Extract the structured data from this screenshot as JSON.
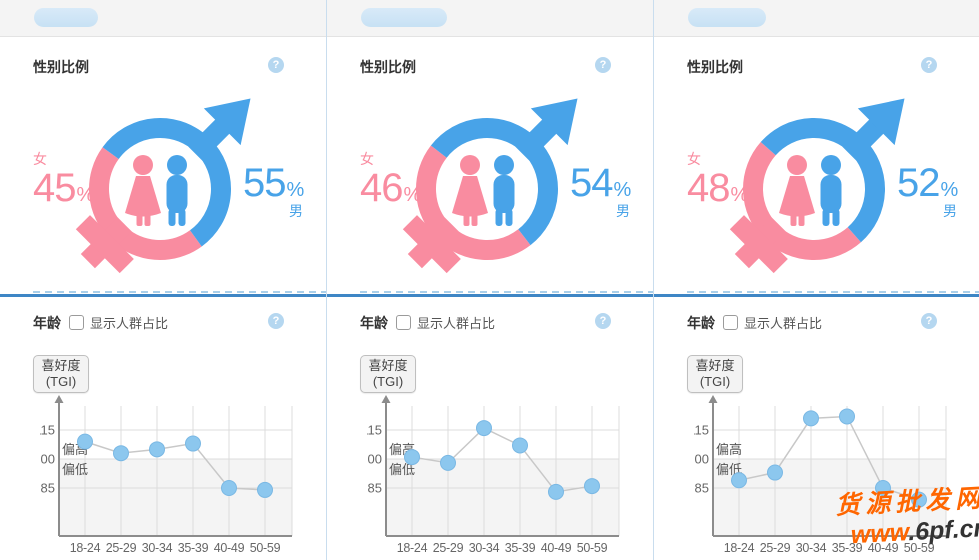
{
  "colors": {
    "male_blue": "#48A3E8",
    "female_pink": "#F98CA0",
    "point_fill": "#8CC7EE",
    "point_stroke": "#7AB8E4",
    "line_gray": "#C8C8C8",
    "grid_gray": "#DCDCDC",
    "axis_gray": "#8C8C8C",
    "shade_gray": "#F4F4F4",
    "tick_text": "#666666",
    "divider_solid": "#3E86C5",
    "divider_dash": "#AACFE9",
    "watermark_orange": "#FF6600",
    "watermark_dark": "#333333"
  },
  "shared": {
    "help_icon": "?",
    "age_axis": {
      "ylabel_line1": "喜好度",
      "ylabel_line2": "(TGI)",
      "high_label": "偏高",
      "low_label": "偏低",
      "yticks": [
        115,
        100,
        85
      ],
      "categories": [
        "18-24",
        "25-29",
        "30-34",
        "35-39",
        "40-49",
        "50-59"
      ]
    }
  },
  "watermark": {
    "line1": "货源批发网",
    "line2_orange": "www",
    "line2_dark": ".6pf.cn"
  },
  "columns": [
    {
      "pill_width": 64,
      "gender": {
        "title": "性别比例",
        "female_label": "女",
        "male_label": "男",
        "female_value": "45",
        "male_value": "55",
        "percent": "%",
        "female_pct": 45
      },
      "age": {
        "title": "年龄",
        "checkbox_label": "显示人群占比",
        "values": [
          109,
          103,
          105,
          108,
          85,
          84
        ]
      }
    },
    {
      "pill_width": 86,
      "gender": {
        "title": "性别比例",
        "female_label": "女",
        "male_label": "男",
        "female_value": "46",
        "male_value": "54",
        "percent": "%",
        "female_pct": 46
      },
      "age": {
        "title": "年龄",
        "checkbox_label": "显示人群占比",
        "values": [
          101,
          98,
          116,
          107,
          83,
          86
        ]
      }
    },
    {
      "pill_width": 78,
      "gender": {
        "title": "性别比例",
        "female_label": "女",
        "male_label": "男",
        "female_value": "48",
        "male_value": "52",
        "percent": "%",
        "female_pct": 48
      },
      "age": {
        "title": "年龄",
        "checkbox_label": "显示人群占比",
        "values": [
          89,
          93,
          121,
          122,
          85,
          79
        ]
      }
    }
  ],
  "chart_data": [
    {
      "type": "pie",
      "title": "性别比例 panel 1",
      "labels": [
        "女",
        "男"
      ],
      "values": [
        45,
        55
      ]
    },
    {
      "type": "pie",
      "title": "性别比例 panel 2",
      "labels": [
        "女",
        "男"
      ],
      "values": [
        46,
        54
      ]
    },
    {
      "type": "pie",
      "title": "性别比例 panel 3",
      "labels": [
        "女",
        "男"
      ],
      "values": [
        48,
        52
      ]
    },
    {
      "type": "line",
      "title": "年龄 喜好度(TGI) panel 1",
      "ylabel": "喜好度(TGI)",
      "categories": [
        "18-24",
        "25-29",
        "30-34",
        "35-39",
        "40-49",
        "50-59"
      ],
      "values": [
        109,
        103,
        105,
        108,
        85,
        84
      ],
      "yticks": [
        115,
        100,
        85
      ],
      "annotations": [
        "偏高",
        "偏低"
      ]
    },
    {
      "type": "line",
      "title": "年龄 喜好度(TGI) panel 2",
      "ylabel": "喜好度(TGI)",
      "categories": [
        "18-24",
        "25-29",
        "30-34",
        "35-39",
        "40-49",
        "50-59"
      ],
      "values": [
        101,
        98,
        116,
        107,
        83,
        86
      ],
      "yticks": [
        115,
        100,
        85
      ],
      "annotations": [
        "偏高",
        "偏低"
      ]
    },
    {
      "type": "line",
      "title": "年龄 喜好度(TGI) panel 3",
      "ylabel": "喜好度(TGI)",
      "categories": [
        "18-24",
        "25-29",
        "30-34",
        "35-39",
        "40-49",
        "50-59"
      ],
      "values": [
        89,
        93,
        121,
        122,
        85,
        79
      ],
      "yticks": [
        115,
        100,
        85
      ],
      "annotations": [
        "偏高",
        "偏低"
      ]
    }
  ]
}
